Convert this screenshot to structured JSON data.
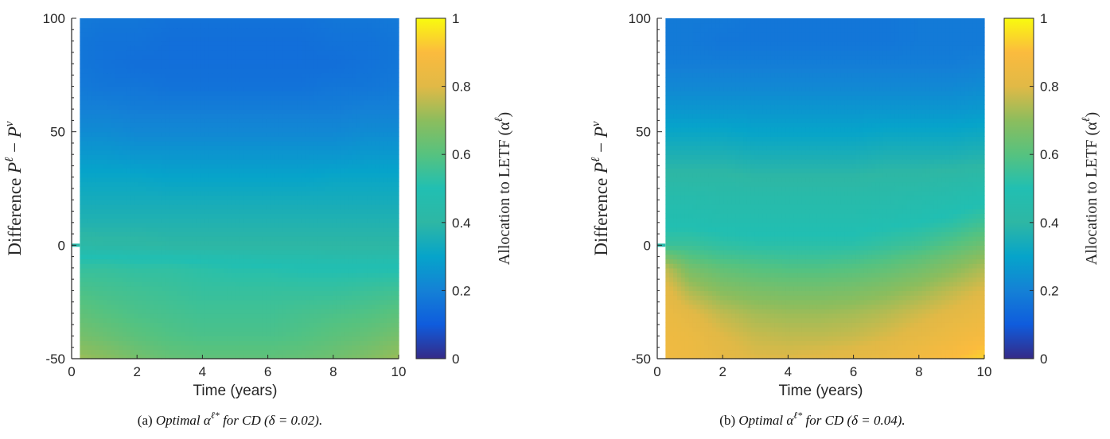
{
  "chart_data": [
    {
      "type": "heatmap",
      "caption_prefix": "(a)",
      "caption_math": "Optimal α",
      "caption_sup": "ℓ*",
      "caption_rest": "for CD (δ = 0.02).",
      "xlabel": "Time (years)",
      "ylabel_text": "Difference",
      "ylabel_math": "P",
      "ylabel_sup1": "ℓ",
      "ylabel_minus": "−",
      "ylabel_math2": "P",
      "ylabel_sup2": "v",
      "xlim": [
        0,
        10
      ],
      "ylim": [
        -50,
        100
      ],
      "xticks": [
        "0",
        "2",
        "4",
        "6",
        "8",
        "10"
      ],
      "yticks": [
        "-50",
        "0",
        "50",
        "100"
      ],
      "colorbar_label": "Allocation to LETF (α",
      "colorbar_label_sup": "ℓ",
      "colorbar_label_end": ")",
      "colorbar_ticks": [
        "0",
        "0.2",
        "0.4",
        "0.6",
        "0.8",
        "1"
      ],
      "clim": [
        0,
        1
      ],
      "x": [
        0.25,
        1,
        2,
        3,
        4,
        5,
        6,
        7,
        8,
        9,
        10
      ],
      "y": [
        -50,
        -40,
        -30,
        -20,
        -10,
        -5,
        0,
        10,
        20,
        30,
        40,
        50,
        60,
        70,
        80,
        90,
        100
      ],
      "z": [
        [
          0.72,
          0.7,
          0.66,
          0.63,
          0.62,
          0.62,
          0.62,
          0.63,
          0.65,
          0.68,
          0.72
        ],
        [
          0.66,
          0.64,
          0.61,
          0.59,
          0.58,
          0.58,
          0.58,
          0.59,
          0.61,
          0.63,
          0.66
        ],
        [
          0.62,
          0.6,
          0.58,
          0.57,
          0.56,
          0.56,
          0.56,
          0.57,
          0.58,
          0.59,
          0.61
        ],
        [
          0.58,
          0.57,
          0.56,
          0.55,
          0.54,
          0.54,
          0.54,
          0.54,
          0.54,
          0.55,
          0.56
        ],
        [
          0.54,
          0.54,
          0.53,
          0.53,
          0.52,
          0.51,
          0.51,
          0.5,
          0.5,
          0.5,
          0.5
        ],
        [
          0.5,
          0.5,
          0.49,
          0.49,
          0.48,
          0.47,
          0.46,
          0.46,
          0.45,
          0.45,
          0.45
        ],
        [
          0.42,
          0.41,
          0.41,
          0.4,
          0.4,
          0.4,
          0.4,
          0.4,
          0.4,
          0.4,
          0.4
        ],
        [
          0.37,
          0.37,
          0.37,
          0.37,
          0.37,
          0.37,
          0.37,
          0.37,
          0.37,
          0.37,
          0.37
        ],
        [
          0.34,
          0.34,
          0.34,
          0.34,
          0.34,
          0.34,
          0.34,
          0.34,
          0.34,
          0.34,
          0.34
        ],
        [
          0.31,
          0.31,
          0.31,
          0.3,
          0.3,
          0.3,
          0.3,
          0.3,
          0.31,
          0.31,
          0.31
        ],
        [
          0.27,
          0.27,
          0.26,
          0.26,
          0.26,
          0.26,
          0.26,
          0.26,
          0.26,
          0.27,
          0.27
        ],
        [
          0.23,
          0.23,
          0.22,
          0.22,
          0.22,
          0.22,
          0.22,
          0.22,
          0.22,
          0.23,
          0.23
        ],
        [
          0.2,
          0.2,
          0.19,
          0.19,
          0.19,
          0.19,
          0.19,
          0.19,
          0.19,
          0.2,
          0.2
        ],
        [
          0.18,
          0.17,
          0.17,
          0.16,
          0.16,
          0.16,
          0.16,
          0.16,
          0.17,
          0.17,
          0.18
        ],
        [
          0.17,
          0.16,
          0.15,
          0.15,
          0.15,
          0.15,
          0.15,
          0.15,
          0.15,
          0.16,
          0.17
        ],
        [
          0.17,
          0.16,
          0.16,
          0.15,
          0.15,
          0.15,
          0.15,
          0.15,
          0.16,
          0.16,
          0.17
        ],
        [
          0.18,
          0.17,
          0.17,
          0.16,
          0.16,
          0.16,
          0.16,
          0.16,
          0.17,
          0.17,
          0.18
        ]
      ],
      "left_strip_value": 0.02,
      "marker_y": 0,
      "marker_value": 0.45
    },
    {
      "type": "heatmap",
      "caption_prefix": "(b)",
      "caption_math": "Optimal α",
      "caption_sup": "ℓ*",
      "caption_rest": "for CD (δ = 0.04).",
      "xlabel": "Time (years)",
      "ylabel_text": "Difference",
      "ylabel_math": "P",
      "ylabel_sup1": "ℓ",
      "ylabel_minus": "−",
      "ylabel_math2": "P",
      "ylabel_sup2": "v",
      "xlim": [
        0,
        10
      ],
      "ylim": [
        -50,
        100
      ],
      "xticks": [
        "0",
        "2",
        "4",
        "6",
        "8",
        "10"
      ],
      "yticks": [
        "-50",
        "0",
        "50",
        "100"
      ],
      "colorbar_label": "Allocation to LETF (α",
      "colorbar_label_sup": "ℓ",
      "colorbar_label_end": ")",
      "colorbar_ticks": [
        "0",
        "0.2",
        "0.4",
        "0.6",
        "0.8",
        "1"
      ],
      "clim": [
        0,
        1
      ],
      "x": [
        0.25,
        1,
        2,
        3,
        4,
        5,
        6,
        7,
        8,
        9,
        10
      ],
      "y": [
        -50,
        -40,
        -30,
        -20,
        -10,
        -5,
        0,
        10,
        20,
        30,
        40,
        50,
        60,
        70,
        80,
        90,
        100
      ],
      "z": [
        [
          0.86,
          0.85,
          0.82,
          0.8,
          0.8,
          0.81,
          0.82,
          0.84,
          0.87,
          0.9,
          0.94
        ],
        [
          0.85,
          0.84,
          0.8,
          0.77,
          0.76,
          0.76,
          0.77,
          0.79,
          0.82,
          0.85,
          0.88
        ],
        [
          0.84,
          0.81,
          0.76,
          0.73,
          0.72,
          0.72,
          0.73,
          0.75,
          0.78,
          0.81,
          0.84
        ],
        [
          0.82,
          0.74,
          0.69,
          0.67,
          0.66,
          0.66,
          0.67,
          0.69,
          0.72,
          0.76,
          0.8
        ],
        [
          0.76,
          0.66,
          0.62,
          0.6,
          0.59,
          0.59,
          0.6,
          0.62,
          0.65,
          0.69,
          0.74
        ],
        [
          0.66,
          0.6,
          0.57,
          0.56,
          0.55,
          0.55,
          0.56,
          0.58,
          0.61,
          0.65,
          0.7
        ],
        [
          0.55,
          0.55,
          0.53,
          0.52,
          0.52,
          0.52,
          0.52,
          0.54,
          0.56,
          0.6,
          0.65
        ],
        [
          0.49,
          0.49,
          0.48,
          0.48,
          0.48,
          0.48,
          0.48,
          0.49,
          0.5,
          0.52,
          0.56
        ],
        [
          0.46,
          0.46,
          0.45,
          0.45,
          0.45,
          0.45,
          0.45,
          0.45,
          0.46,
          0.47,
          0.49
        ],
        [
          0.41,
          0.41,
          0.41,
          0.4,
          0.4,
          0.4,
          0.4,
          0.41,
          0.41,
          0.42,
          0.43
        ],
        [
          0.36,
          0.36,
          0.36,
          0.35,
          0.35,
          0.35,
          0.35,
          0.36,
          0.36,
          0.36,
          0.37
        ],
        [
          0.31,
          0.31,
          0.31,
          0.3,
          0.3,
          0.3,
          0.3,
          0.31,
          0.31,
          0.31,
          0.32
        ],
        [
          0.26,
          0.26,
          0.26,
          0.26,
          0.26,
          0.26,
          0.26,
          0.26,
          0.26,
          0.26,
          0.27
        ],
        [
          0.22,
          0.22,
          0.22,
          0.22,
          0.22,
          0.22,
          0.22,
          0.22,
          0.22,
          0.22,
          0.23
        ],
        [
          0.19,
          0.19,
          0.19,
          0.19,
          0.19,
          0.19,
          0.19,
          0.19,
          0.19,
          0.19,
          0.2
        ],
        [
          0.18,
          0.18,
          0.17,
          0.17,
          0.17,
          0.17,
          0.17,
          0.17,
          0.18,
          0.18,
          0.18
        ],
        [
          0.18,
          0.18,
          0.18,
          0.17,
          0.17,
          0.17,
          0.17,
          0.17,
          0.18,
          0.18,
          0.18
        ]
      ],
      "left_strip_value": 0.02,
      "marker_y": 0,
      "marker_value": 0.45
    }
  ]
}
